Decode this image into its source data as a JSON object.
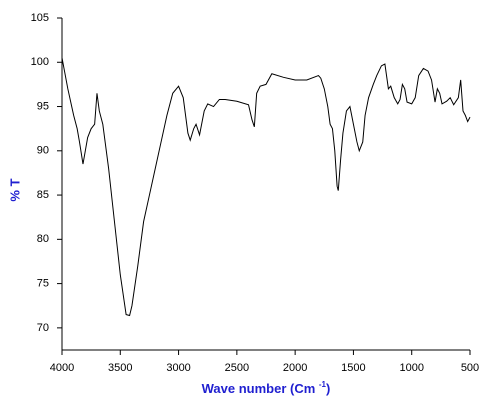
{
  "chart_data": {
    "type": "line",
    "y_label": "% T",
    "x_label": [
      "Wave number (Cm ",
      "-1",
      ")"
    ],
    "xlim": [
      4000,
      500
    ],
    "xticks": [
      4000,
      3500,
      3000,
      2500,
      2000,
      1500,
      1000,
      500
    ],
    "ylim": [
      67.5,
      105
    ],
    "yticks": [
      70,
      75,
      80,
      85,
      90,
      95,
      100,
      105
    ],
    "grid": false,
    "series": [
      {
        "color": "#000000",
        "x": [
          4000,
          3950,
          3900,
          3870,
          3850,
          3820,
          3800,
          3780,
          3750,
          3720,
          3700,
          3680,
          3650,
          3600,
          3550,
          3500,
          3450,
          3420,
          3400,
          3350,
          3300,
          3250,
          3200,
          3150,
          3100,
          3050,
          3000,
          2960,
          2920,
          2900,
          2870,
          2850,
          2820,
          2780,
          2750,
          2700,
          2650,
          2600,
          2500,
          2400,
          2370,
          2350,
          2330,
          2300,
          2250,
          2200,
          2100,
          2000,
          1900,
          1800,
          1780,
          1750,
          1720,
          1700,
          1680,
          1660,
          1640,
          1630,
          1610,
          1590,
          1560,
          1530,
          1500,
          1470,
          1450,
          1420,
          1400,
          1370,
          1330,
          1300,
          1260,
          1230,
          1200,
          1180,
          1150,
          1120,
          1100,
          1080,
          1060,
          1040,
          1000,
          970,
          940,
          900,
          860,
          830,
          800,
          780,
          760,
          740,
          700,
          670,
          640,
          600,
          580,
          560,
          540,
          520,
          500
        ],
        "values": [
          100.5,
          97,
          94,
          92.5,
          91,
          88.5,
          90,
          91.5,
          92.5,
          93,
          96.5,
          94.5,
          93,
          88,
          82,
          76,
          71.5,
          71.4,
          72.5,
          77,
          82,
          85,
          88,
          91,
          94,
          96.5,
          97.3,
          96,
          92,
          91.2,
          92.5,
          93,
          91.8,
          94.5,
          95.3,
          95,
          95.8,
          95.8,
          95.6,
          95.2,
          93.5,
          92.7,
          96.5,
          97.3,
          97.5,
          98.7,
          98.3,
          98,
          98,
          98.5,
          98.2,
          97,
          95,
          93,
          92.5,
          90,
          86,
          85.5,
          89,
          92,
          94.5,
          95,
          93,
          91,
          90,
          91,
          94,
          96,
          97.5,
          98.5,
          99.6,
          99.8,
          97,
          97.3,
          96,
          95.3,
          95.8,
          97.5,
          97,
          95.5,
          95.3,
          96,
          98.5,
          99.3,
          99,
          98,
          95.5,
          97,
          96.5,
          95.3,
          95.6,
          96,
          95.2,
          96,
          98,
          94.5,
          94,
          93.3,
          93.8
        ]
      }
    ]
  }
}
